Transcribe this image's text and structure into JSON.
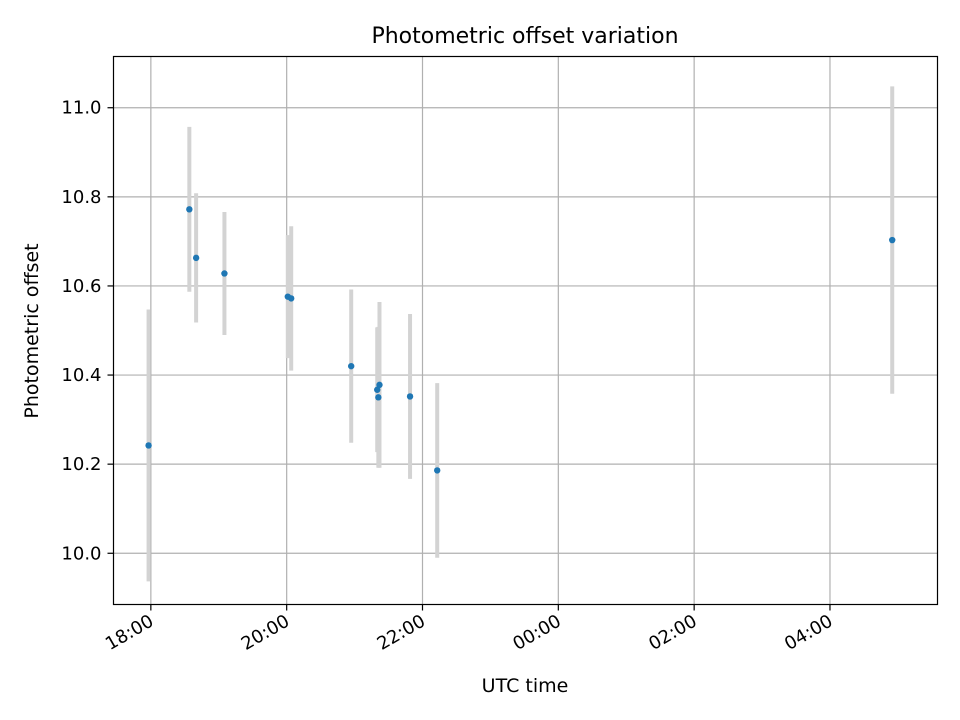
{
  "chart_data": {
    "type": "scatter",
    "title": "Photometric offset variation",
    "xlabel": "UTC time",
    "ylabel": "Photometric offset",
    "x_axis_type": "time",
    "xlim": [
      "17:27",
      "05:35"
    ],
    "ylim": [
      9.885,
      11.115
    ],
    "x_ticks": [
      "18:00",
      "20:00",
      "22:00",
      "00:00",
      "02:00",
      "04:00"
    ],
    "y_ticks": [
      10.0,
      10.2,
      10.4,
      10.6,
      10.8,
      11.0
    ],
    "y_tick_labels": [
      "10.0",
      "10.2",
      "10.4",
      "10.6",
      "10.8",
      "11.0"
    ],
    "grid": true,
    "point_color": "#1f77b4",
    "errorbar_color": "#d3d3d3",
    "points": [
      {
        "x": "17:58",
        "y": 10.242,
        "err": 0.305
      },
      {
        "x": "18:34",
        "y": 10.772,
        "err": 0.185
      },
      {
        "x": "18:40",
        "y": 10.663,
        "err": 0.145
      },
      {
        "x": "19:05",
        "y": 10.628,
        "err": 0.138
      },
      {
        "x": "20:01",
        "y": 10.576,
        "err": 0.138
      },
      {
        "x": "20:04",
        "y": 10.572,
        "err": 0.162
      },
      {
        "x": "20:57",
        "y": 10.42,
        "err": 0.172
      },
      {
        "x": "21:20",
        "y": 10.367,
        "err": 0.14
      },
      {
        "x": "21:21",
        "y": 10.35,
        "err": 0.158
      },
      {
        "x": "21:22",
        "y": 10.378,
        "err": 0.186
      },
      {
        "x": "21:49",
        "y": 10.352,
        "err": 0.185
      },
      {
        "x": "22:13",
        "y": 10.186,
        "err": 0.196
      },
      {
        "x": "04:55",
        "y": 10.703,
        "err": 0.345
      }
    ]
  }
}
